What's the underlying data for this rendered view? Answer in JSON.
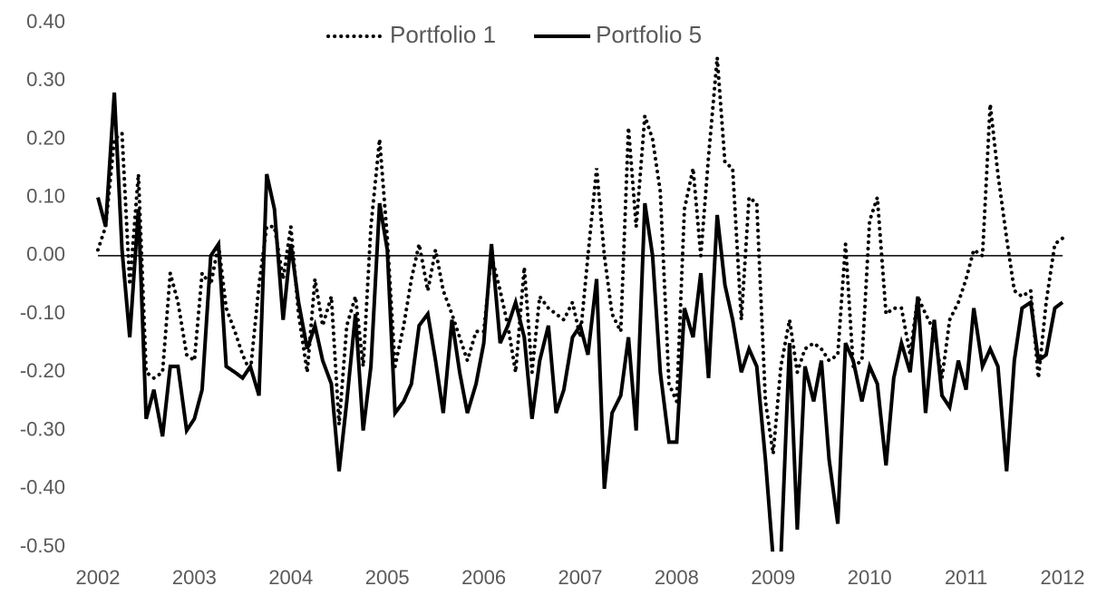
{
  "chart_data": {
    "type": "line",
    "x": [
      2002,
      2002.08,
      2002.17,
      2002.25,
      2002.33,
      2002.42,
      2002.5,
      2002.58,
      2002.67,
      2002.75,
      2002.83,
      2002.92,
      2003,
      2003.08,
      2003.17,
      2003.25,
      2003.33,
      2003.42,
      2003.5,
      2003.58,
      2003.67,
      2003.75,
      2003.83,
      2003.92,
      2004,
      2004.08,
      2004.17,
      2004.25,
      2004.33,
      2004.42,
      2004.5,
      2004.58,
      2004.67,
      2004.75,
      2004.83,
      2004.92,
      2005,
      2005.08,
      2005.17,
      2005.25,
      2005.33,
      2005.42,
      2005.5,
      2005.58,
      2005.67,
      2005.75,
      2005.83,
      2005.92,
      2006,
      2006.08,
      2006.17,
      2006.25,
      2006.33,
      2006.42,
      2006.5,
      2006.58,
      2006.67,
      2006.75,
      2006.83,
      2006.92,
      2007,
      2007.08,
      2007.17,
      2007.25,
      2007.33,
      2007.42,
      2007.5,
      2007.58,
      2007.67,
      2007.75,
      2007.83,
      2007.92,
      2008,
      2008.08,
      2008.17,
      2008.25,
      2008.33,
      2008.42,
      2008.5,
      2008.58,
      2008.67,
      2008.75,
      2008.83,
      2008.92,
      2009,
      2009.08,
      2009.17,
      2009.25,
      2009.33,
      2009.42,
      2009.5,
      2009.58,
      2009.67,
      2009.75,
      2009.83,
      2009.92,
      2010,
      2010.08,
      2010.17,
      2010.25,
      2010.33,
      2010.42,
      2010.5,
      2010.58,
      2010.67,
      2010.75,
      2010.83,
      2010.92,
      2011,
      2011.08,
      2011.17,
      2011.25,
      2011.33,
      2011.42,
      2011.5,
      2011.58,
      2011.67,
      2011.75,
      2011.83,
      2011.92,
      2012
    ],
    "series": [
      {
        "name": "Portfolio 1",
        "color": "#000000",
        "style": "dotted",
        "values": [
          0.01,
          0.05,
          0.2,
          0.21,
          -0.05,
          0.14,
          -0.2,
          -0.21,
          -0.2,
          -0.03,
          -0.08,
          -0.17,
          -0.18,
          -0.03,
          -0.05,
          0.02,
          -0.09,
          -0.13,
          -0.17,
          -0.2,
          -0.05,
          0.05,
          0.05,
          -0.04,
          0.05,
          -0.1,
          -0.2,
          -0.04,
          -0.12,
          -0.07,
          -0.29,
          -0.12,
          -0.07,
          -0.19,
          0.05,
          0.2,
          0.03,
          -0.19,
          -0.12,
          -0.04,
          0.02,
          -0.06,
          0.01,
          -0.06,
          -0.1,
          -0.14,
          -0.18,
          -0.13,
          -0.13,
          0.0,
          -0.06,
          -0.12,
          -0.2,
          -0.02,
          -0.2,
          -0.07,
          -0.09,
          -0.1,
          -0.11,
          -0.08,
          -0.14,
          0.0,
          0.15,
          0.0,
          -0.1,
          -0.13,
          0.22,
          0.05,
          0.24,
          0.2,
          0.11,
          -0.22,
          -0.25,
          0.08,
          0.15,
          0.0,
          0.17,
          0.34,
          0.16,
          0.15,
          -0.11,
          0.1,
          0.09,
          -0.25,
          -0.34,
          -0.19,
          -0.11,
          -0.2,
          -0.16,
          -0.15,
          -0.16,
          -0.18,
          -0.17,
          0.02,
          -0.19,
          -0.18,
          0.06,
          0.1,
          -0.1,
          -0.09,
          -0.09,
          -0.17,
          -0.07,
          -0.1,
          -0.13,
          -0.21,
          -0.11,
          -0.08,
          -0.04,
          0.01,
          0.0,
          0.26,
          0.14,
          0.03,
          -0.06,
          -0.07,
          -0.06,
          -0.21,
          -0.08,
          0.02,
          0.03
        ]
      },
      {
        "name": "Portfolio 5",
        "color": "#000000",
        "style": "solid",
        "values": [
          0.1,
          0.05,
          0.28,
          0.01,
          -0.14,
          0.08,
          -0.28,
          -0.23,
          -0.31,
          -0.19,
          -0.19,
          -0.3,
          -0.28,
          -0.23,
          0.0,
          0.02,
          -0.19,
          -0.2,
          -0.21,
          -0.19,
          -0.24,
          0.14,
          0.08,
          -0.11,
          0.02,
          -0.08,
          -0.16,
          -0.12,
          -0.18,
          -0.22,
          -0.37,
          -0.25,
          -0.1,
          -0.3,
          -0.19,
          0.09,
          0.01,
          -0.27,
          -0.25,
          -0.22,
          -0.12,
          -0.1,
          -0.18,
          -0.27,
          -0.11,
          -0.2,
          -0.27,
          -0.22,
          -0.15,
          0.02,
          -0.15,
          -0.12,
          -0.08,
          -0.14,
          -0.28,
          -0.18,
          -0.12,
          -0.27,
          -0.23,
          -0.14,
          -0.12,
          -0.17,
          -0.04,
          -0.4,
          -0.27,
          -0.24,
          -0.14,
          -0.3,
          0.09,
          0.0,
          -0.2,
          -0.32,
          -0.32,
          -0.09,
          -0.14,
          -0.03,
          -0.21,
          0.07,
          -0.05,
          -0.11,
          -0.2,
          -0.16,
          -0.19,
          -0.35,
          -0.52,
          -0.52,
          -0.15,
          -0.47,
          -0.19,
          -0.25,
          -0.18,
          -0.35,
          -0.46,
          -0.15,
          -0.18,
          -0.25,
          -0.19,
          -0.22,
          -0.36,
          -0.21,
          -0.15,
          -0.2,
          -0.07,
          -0.27,
          -0.11,
          -0.24,
          -0.26,
          -0.18,
          -0.23,
          -0.09,
          -0.19,
          -0.16,
          -0.19,
          -0.37,
          -0.18,
          -0.09,
          -0.08,
          -0.18,
          -0.17,
          -0.09,
          -0.08
        ]
      }
    ],
    "xlim": [
      2002,
      2012
    ],
    "xticks": [
      2002,
      2003,
      2004,
      2005,
      2006,
      2007,
      2008,
      2009,
      2010,
      2011,
      2012
    ],
    "ylim": [
      -0.5,
      0.4
    ],
    "yticks": [
      {
        "value": -0.5,
        "label": "-0.50"
      },
      {
        "value": -0.4,
        "label": "-0.40"
      },
      {
        "value": -0.3,
        "label": "-0.30"
      },
      {
        "value": -0.2,
        "label": "-0.20"
      },
      {
        "value": -0.1,
        "label": "-0.10"
      },
      {
        "value": 0,
        "label": "0.00"
      },
      {
        "value": 0.1,
        "label": "0.10"
      },
      {
        "value": 0.2,
        "label": "0.20"
      },
      {
        "value": 0.3,
        "label": "0.30"
      },
      {
        "value": 0.4,
        "label": "0.40"
      }
    ],
    "legend": "top"
  }
}
